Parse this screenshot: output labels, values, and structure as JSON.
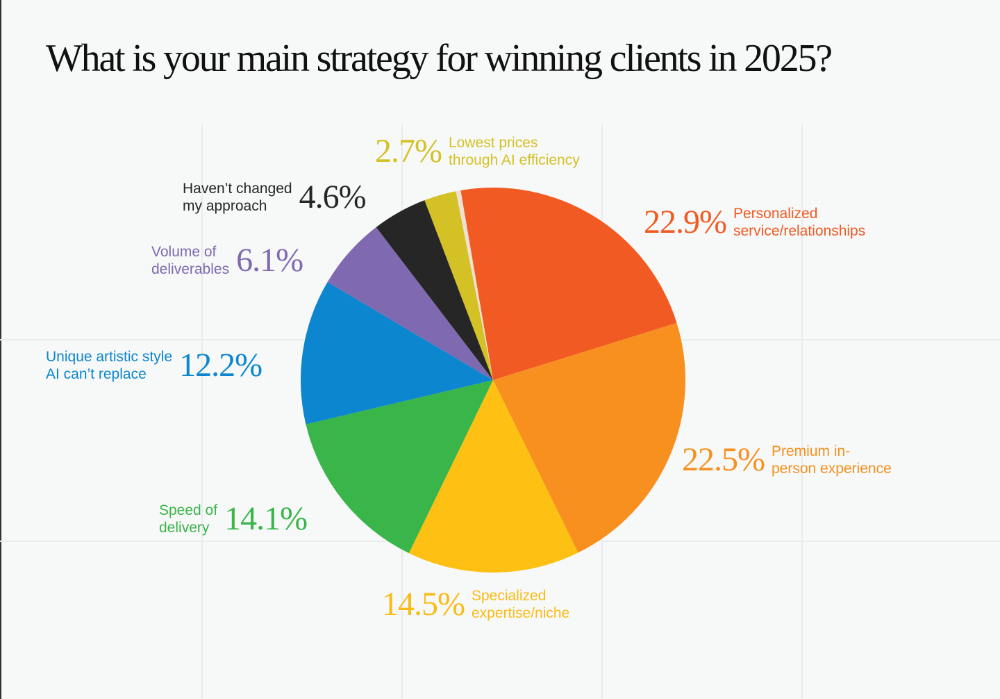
{
  "title": "What is your main strategy for winning clients in 2025?",
  "chart_data": {
    "type": "pie",
    "title": "What is your main strategy for winning clients in 2025?",
    "slices": [
      {
        "label": "Personalized service/relationships",
        "value": 22.9,
        "display": "22.9%",
        "color": "#F15A22"
      },
      {
        "label": "Premium in-person experience",
        "value": 22.5,
        "display": "22.5%",
        "color": "#F7901E"
      },
      {
        "label": "Specialized expertise/niche",
        "value": 14.5,
        "display": "14.5%",
        "color": "#FEC013"
      },
      {
        "label": "Speed of delivery",
        "value": 14.1,
        "display": "14.1%",
        "color": "#39B54A"
      },
      {
        "label": "Unique artistic style AI can't replace",
        "value": 12.2,
        "display": "12.2%",
        "color": "#0B86CF"
      },
      {
        "label": "Volume of deliverables",
        "value": 6.1,
        "display": "6.1%",
        "color": "#7F69B0"
      },
      {
        "label": "Haven't changed my approach",
        "value": 4.6,
        "display": "4.6%",
        "color": "#262626"
      },
      {
        "label": "Lowest prices through AI efficiency",
        "value": 2.7,
        "display": "2.7%",
        "color": "#D4C125"
      },
      {
        "label": "",
        "value": 0.4,
        "display": "",
        "color": "#EFE0D0"
      }
    ],
    "label_colors": [
      "#F15A22",
      "#F7901E",
      "#F9BC15",
      "#39B54A",
      "#0B86CF",
      "#7F69B0",
      "#262626",
      "#D4C125"
    ],
    "legend": "none (labels beside slices)"
  },
  "labels": [
    {
      "pct": "22.9%",
      "line1": "Personalized",
      "line2": "service/relationships"
    },
    {
      "pct": "22.5%",
      "line1": "Premium in-",
      "line2": "person experience"
    },
    {
      "pct": "14.5%",
      "line1": "Specialized",
      "line2": "expertise/niche"
    },
    {
      "pct": "14.1%",
      "line1": "Speed of",
      "line2": "delivery"
    },
    {
      "pct": "12.2%",
      "line1": "Unique artistic style",
      "line2": "AI can’t replace"
    },
    {
      "pct": "6.1%",
      "line1": "Volume of",
      "line2": "deliverables"
    },
    {
      "pct": "4.6%",
      "line1": "Haven’t changed",
      "line2": "my approach"
    },
    {
      "pct": "2.7%",
      "line1": "Lowest prices",
      "line2": "through AI efficiency"
    }
  ]
}
